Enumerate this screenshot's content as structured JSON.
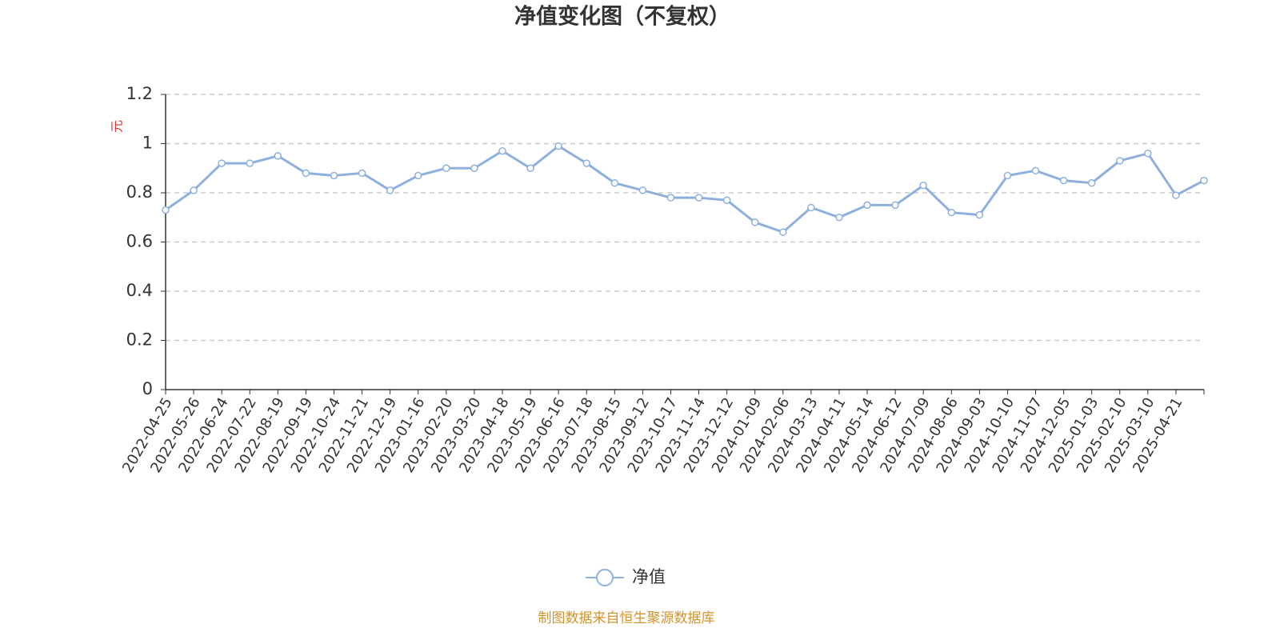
{
  "chart_data": {
    "type": "line",
    "title": "净值变化图（不复权）",
    "y_label": "元",
    "source": "制图数据来自恒生聚源数据库",
    "categories": [
      "2022-04-25",
      "2022-05-26",
      "2022-06-24",
      "2022-07-22",
      "2022-08-19",
      "2022-09-19",
      "2022-10-24",
      "2022-11-21",
      "2022-12-19",
      "2023-01-16",
      "2023-02-20",
      "2023-03-20",
      "2023-04-18",
      "2023-05-19",
      "2023-06-16",
      "2023-07-18",
      "2023-08-15",
      "2023-09-12",
      "2023-10-17",
      "2023-11-14",
      "2023-12-12",
      "2024-01-09",
      "2024-02-06",
      "2024-03-13",
      "2024-04-11",
      "2024-05-14",
      "2024-06-12",
      "2024-07-09",
      "2024-08-06",
      "2024-09-03",
      "2024-10-10",
      "2024-11-07",
      "2024-12-05",
      "2025-01-03",
      "2025-02-10",
      "2025-03-10",
      "2025-04-21",
      null
    ],
    "series": [
      {
        "name": "净值",
        "color": "#8eb0dd",
        "values": [
          0.73,
          0.81,
          0.92,
          0.92,
          0.95,
          0.88,
          0.87,
          0.88,
          0.81,
          0.87,
          0.9,
          0.9,
          0.97,
          0.9,
          0.99,
          0.92,
          0.84,
          0.81,
          0.78,
          0.78,
          0.77,
          0.68,
          0.64,
          0.74,
          0.7,
          0.75,
          0.75,
          0.83,
          0.72,
          0.71,
          0.87,
          0.89,
          0.85,
          0.84,
          0.93,
          0.96,
          0.79,
          0.85
        ]
      }
    ],
    "ylim": [
      0,
      1.2
    ],
    "yticks": [
      0,
      0.2,
      0.4,
      0.6,
      0.8,
      1,
      1.2
    ],
    "grid": true
  }
}
